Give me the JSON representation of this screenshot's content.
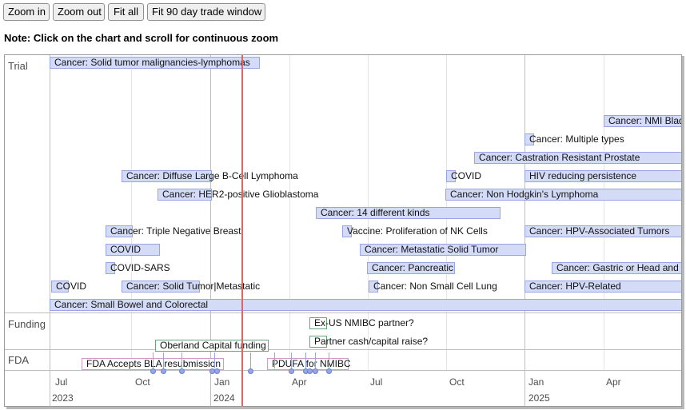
{
  "toolbar": {
    "zoom_in": "Zoom in",
    "zoom_out": "Zoom out",
    "fit_all": "Fit all",
    "fit_90": "Fit 90 day trade window"
  },
  "note": "Note: Click on the chart and scroll for continuous zoom",
  "groups": {
    "trial": "Trial",
    "funding": "Funding",
    "fda": "FDA"
  },
  "trial_items": [
    "Cancer: Solid tumor malignancies-lymphomas",
    "Cancer: NMI Blad",
    "Cancer: Multiple types",
    "Cancer: Castration Resistant Prostate",
    "Cancer: Diffuse Large B-Cell Lymphoma",
    "COVID",
    "HIV reducing persistence",
    "Cancer: HER2-positive Glioblastoma",
    "Cancer: Non Hodgkin's Lymphoma",
    "Cancer: 14 different kinds",
    "Cancer: Triple Negative Breast",
    "Vaccine: Proliferation of NK Cells",
    "Cancer: HPV-Associated Tumors",
    "COVID",
    "Cancer: Metastatic Solid Tumor",
    "COVID-SARS",
    "Cancer: Pancreatic",
    "Cancer: Gastric or Head and N",
    "COVID",
    "Cancer: Solid Tumor|Metastatic",
    "Cancer: Non Small Cell Lung",
    "Cancer: HPV-Related",
    "Cancer: Small Bowel and Colorectal"
  ],
  "funding_items": [
    "Ex-US NMIBC partner?",
    "Partner cash/capital raise?",
    "Oberland Capital funding"
  ],
  "fda_items": [
    "FDA Accepts BLA resubmission",
    "PDUFA for NMIBC"
  ],
  "axis": {
    "minor": [
      "Jul",
      "Oct",
      "Jan",
      "Apr",
      "Jul",
      "Oct",
      "Jan",
      "Apr"
    ],
    "major": [
      "2023",
      "2024",
      "2025"
    ]
  },
  "colors": {
    "item_fill": "#d4dbf7",
    "item_border": "#97a6e3",
    "now_line": "#e06666",
    "funding_border": "#6aa57a",
    "fda_border": "#d09acb"
  }
}
